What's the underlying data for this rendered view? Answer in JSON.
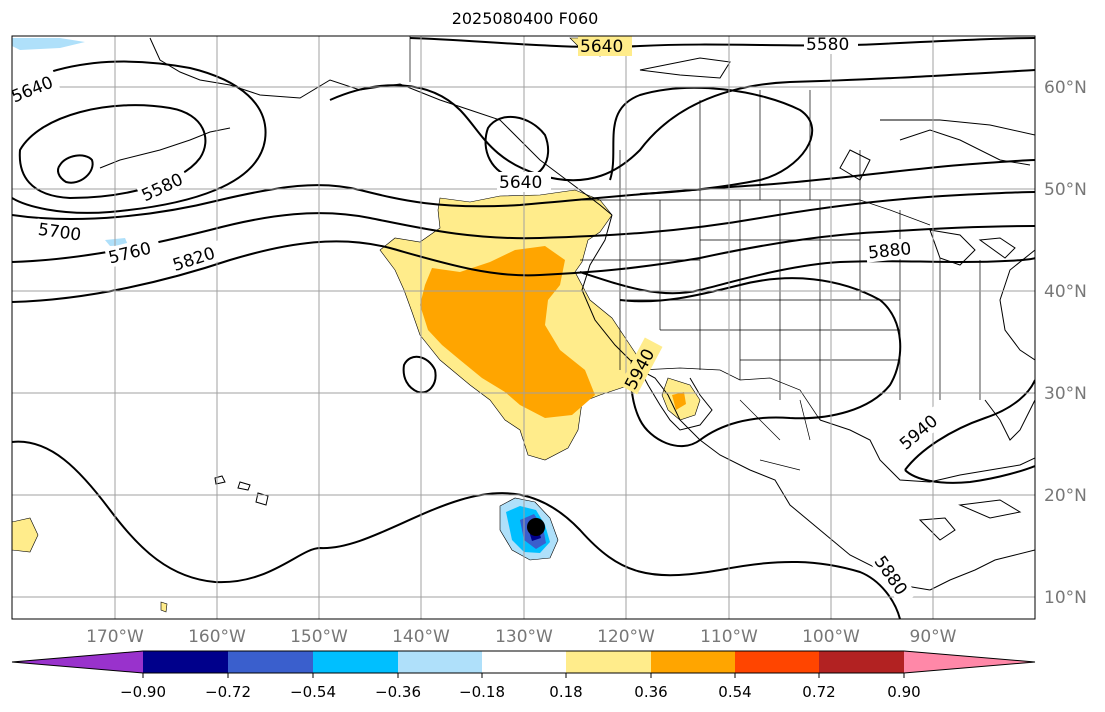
{
  "title": "2025080400 F060",
  "latitude_labels": [
    "60°N",
    "50°N",
    "40°N",
    "30°N",
    "20°N",
    "10°N"
  ],
  "longitude_labels": [
    "170°W",
    "160°W",
    "150°W",
    "140°W",
    "130°W",
    "120°W",
    "110°W",
    "100°W",
    "90°W"
  ],
  "contour_labels": [
    "5640",
    "5580",
    "5640",
    "5580",
    "5640",
    "5700",
    "5760",
    "5820",
    "5880",
    "5940",
    "5940",
    "5880"
  ],
  "colorbar": {
    "colors": [
      "#9932cc",
      "#00008b",
      "#3a5fcd",
      "#00bfff",
      "#afe0fa",
      "#ffffff",
      "#ffec8b",
      "#ffa500",
      "#ff4500",
      "#b22222",
      "#ff88a8"
    ],
    "tick_labels": [
      "−0.90",
      "−0.72",
      "−0.54",
      "−0.36",
      "−0.18",
      "0.18",
      "0.36",
      "0.54",
      "0.72",
      "0.90"
    ]
  },
  "colors": {
    "positive_light": "#ffec8b",
    "positive_strong": "#ffa500",
    "negative_light": "#afe0fa",
    "negative_mid": "#00bfff",
    "negative_strong": "#3a5fcd",
    "negative_darkest": "#00008b",
    "grid": "#a0a0a0",
    "contour": "#000000"
  },
  "storm_marker": "filled-black-circle"
}
